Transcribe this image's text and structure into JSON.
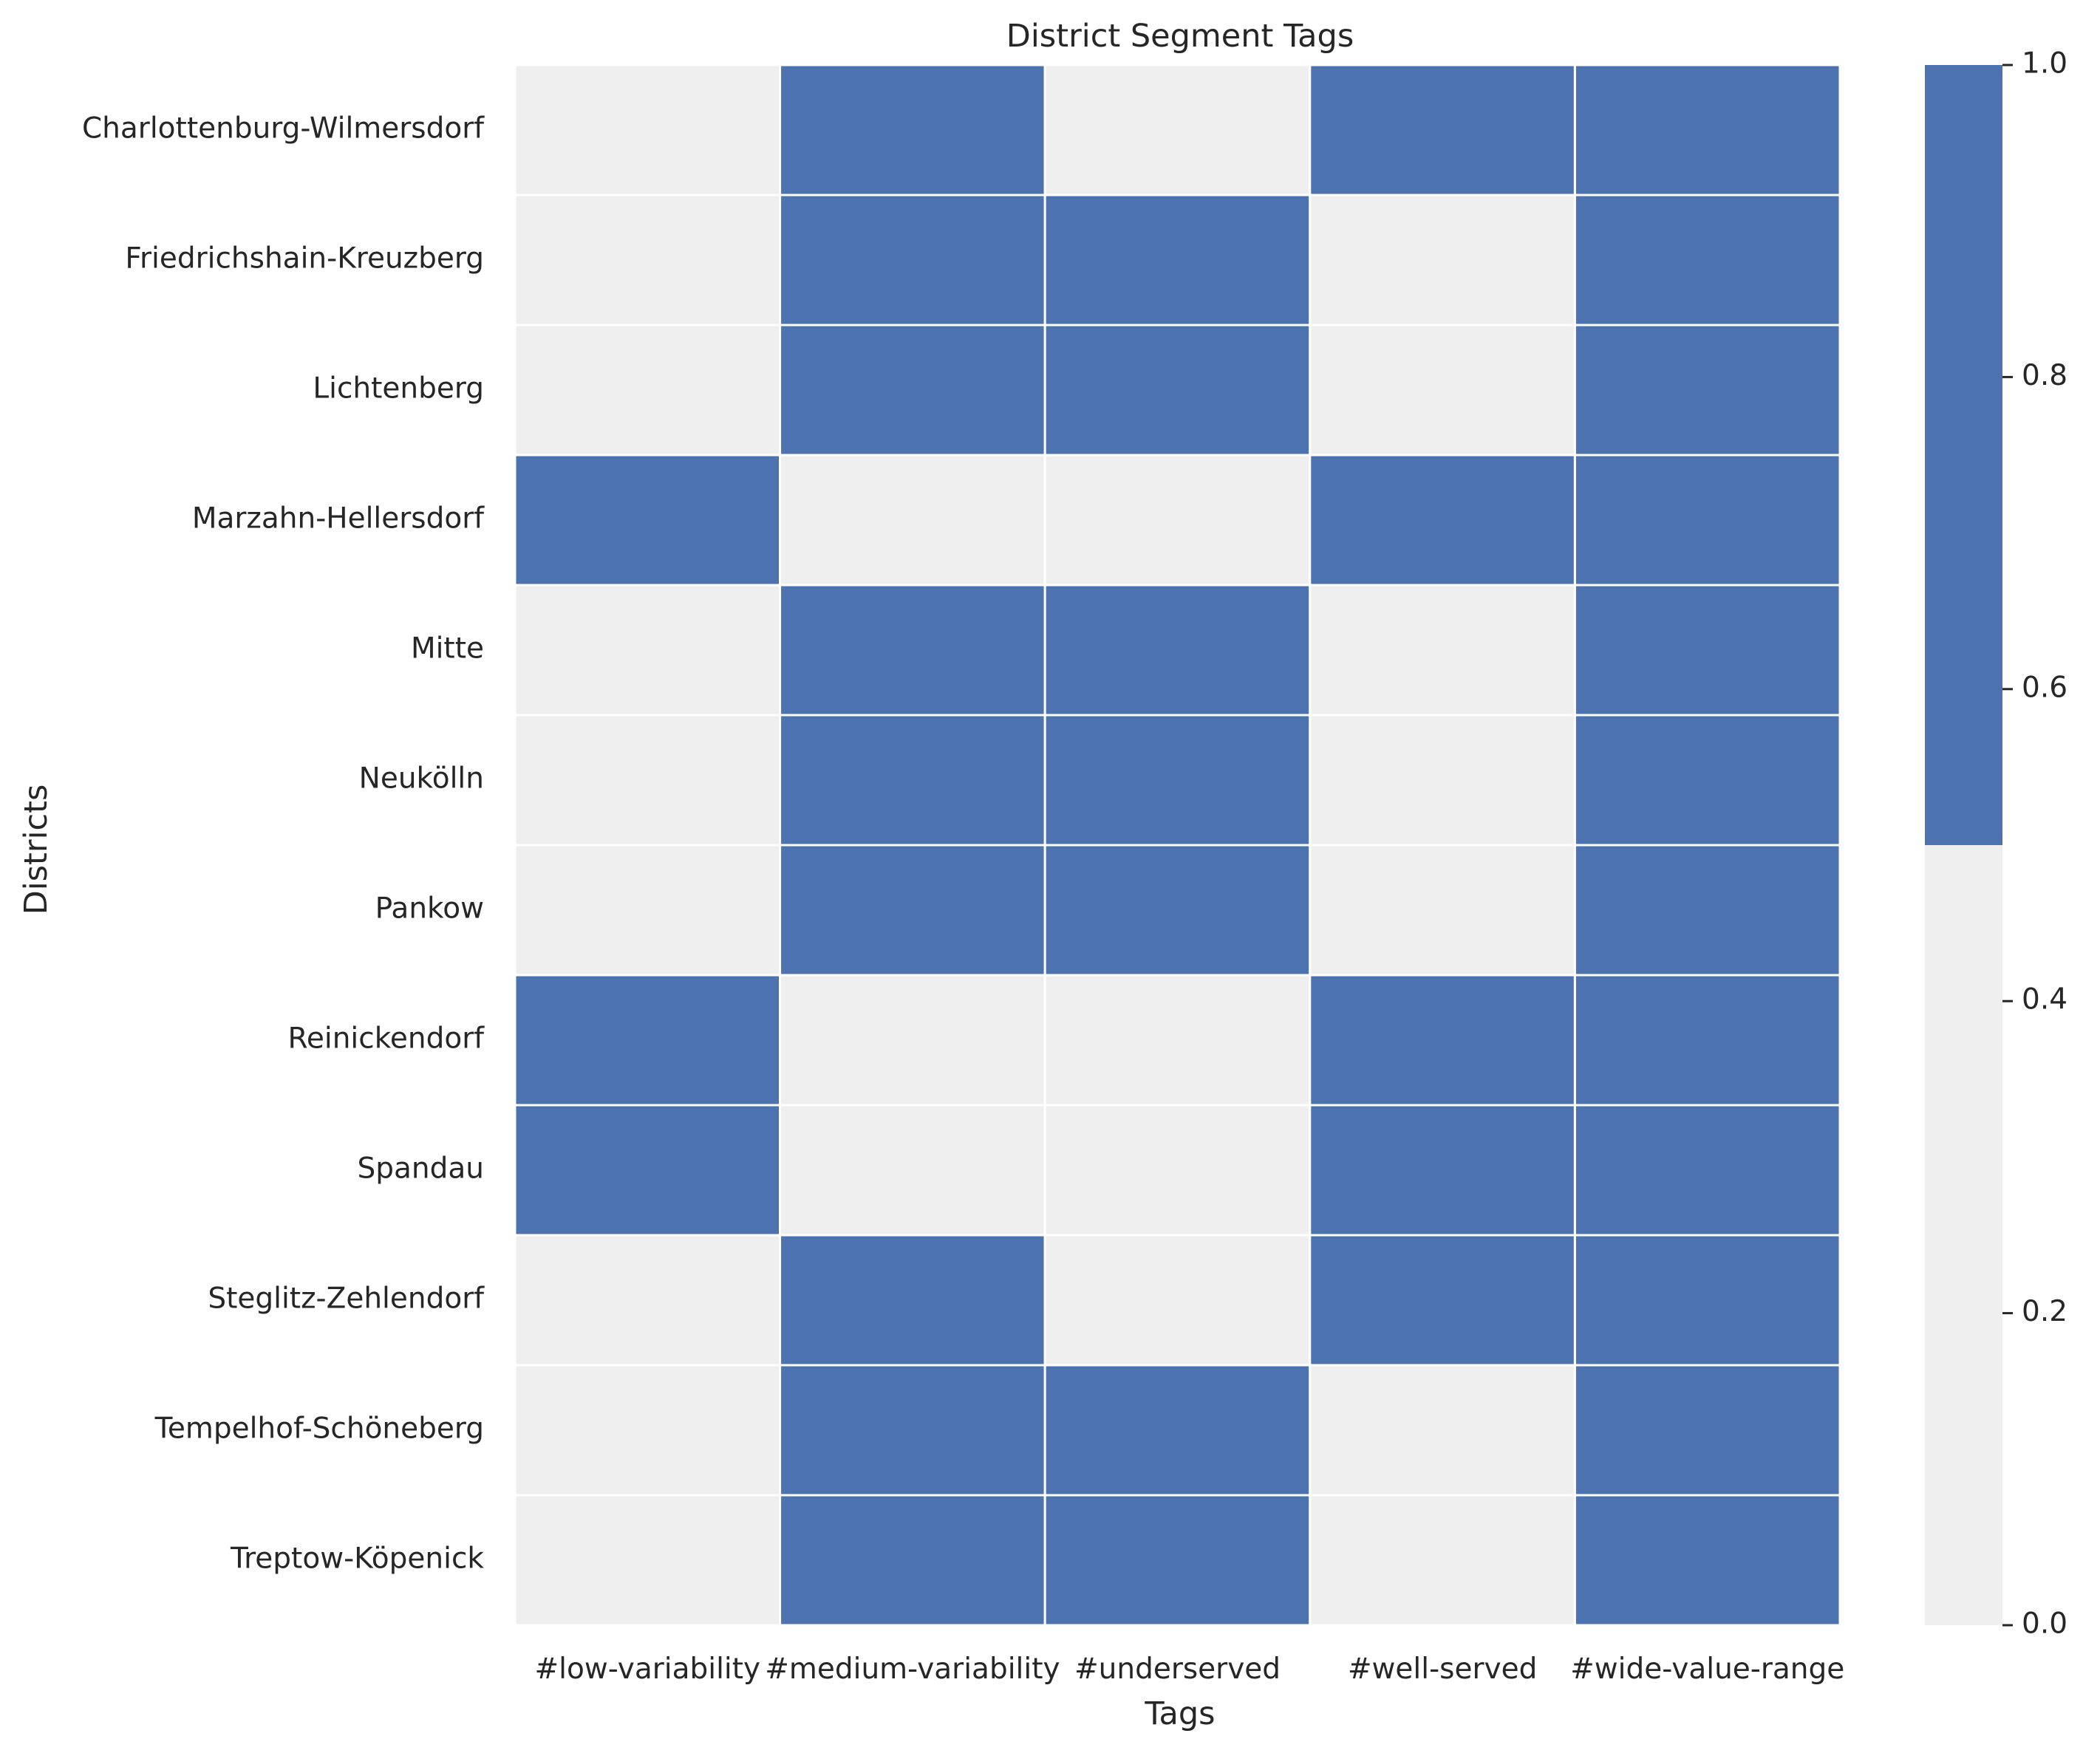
{
  "chart_data": {
    "type": "heatmap",
    "title": "District Segment Tags",
    "xlabel": "Tags",
    "ylabel": "Districts",
    "x_categories": [
      "#low-variability",
      "#medium-variability",
      "#underserved",
      "#well-served",
      "#wide-value-range"
    ],
    "y_categories": [
      "Charlottenburg-Wilmersdorf",
      "Friedrichshain-Kreuzberg",
      "Lichtenberg",
      "Marzahn-Hellersdorf",
      "Mitte",
      "Neukölln",
      "Pankow",
      "Reinickendorf",
      "Spandau",
      "Steglitz-Zehlendorf",
      "Tempelhof-Schöneberg",
      "Treptow-Köpenick"
    ],
    "values": [
      [
        0,
        1,
        0,
        1,
        1
      ],
      [
        0,
        1,
        1,
        0,
        1
      ],
      [
        0,
        1,
        1,
        0,
        1
      ],
      [
        1,
        0,
        0,
        1,
        1
      ],
      [
        0,
        1,
        1,
        0,
        1
      ],
      [
        0,
        1,
        1,
        0,
        1
      ],
      [
        0,
        1,
        1,
        0,
        1
      ],
      [
        1,
        0,
        0,
        1,
        1
      ],
      [
        1,
        0,
        0,
        1,
        1
      ],
      [
        0,
        1,
        0,
        1,
        1
      ],
      [
        0,
        1,
        1,
        0,
        1
      ],
      [
        0,
        1,
        1,
        0,
        1
      ]
    ],
    "colorscale": {
      "low_color": "#efefef",
      "high_color": "#4c72b0",
      "threshold": 0.5,
      "range": [
        0,
        1
      ],
      "ticks": [
        "0.0",
        "0.2",
        "0.4",
        "0.6",
        "0.8",
        "1.0"
      ]
    },
    "grid": false,
    "cell_border_color": "#ffffff"
  }
}
